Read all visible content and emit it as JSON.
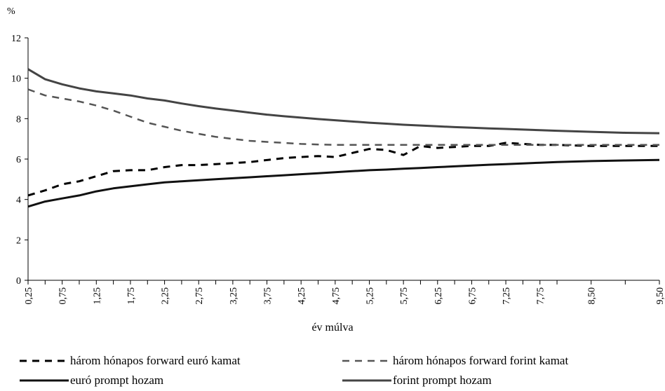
{
  "chart_data": {
    "type": "line",
    "ylabel": "%",
    "xlabel": "év múlva",
    "ylim": [
      0,
      12
    ],
    "yticks": [
      0,
      2,
      4,
      6,
      8,
      10,
      12
    ],
    "xlim": [
      0.25,
      9.5
    ],
    "xtick_labels": [
      "0,25",
      "0,75",
      "1,25",
      "1,75",
      "2,25",
      "2,75",
      "3,25",
      "3,75",
      "4,25",
      "4,75",
      "5,25",
      "5,75",
      "6,25",
      "6,75",
      "7,25",
      "7,75",
      "8,50",
      "9,50"
    ],
    "x": [
      0.25,
      0.5,
      0.75,
      1,
      1.25,
      1.5,
      1.75,
      2,
      2.25,
      2.5,
      2.75,
      3,
      3.25,
      3.5,
      3.75,
      4,
      4.25,
      4.5,
      4.75,
      5,
      5.25,
      5.5,
      5.75,
      6,
      6.25,
      6.5,
      6.75,
      7,
      7.25,
      7.5,
      7.75,
      8,
      8.5,
      9,
      9.5
    ],
    "grid": false,
    "legend_position": "bottom",
    "series": [
      {
        "name": "három hónapos forward euró kamat",
        "style": "dashed-dark",
        "color": "#000000",
        "values": [
          4.2,
          4.45,
          4.75,
          4.9,
          5.15,
          5.4,
          5.45,
          5.45,
          5.6,
          5.7,
          5.7,
          5.75,
          5.8,
          5.85,
          5.95,
          6.05,
          6.1,
          6.15,
          6.1,
          6.3,
          6.5,
          6.45,
          6.2,
          6.65,
          6.55,
          6.6,
          6.65,
          6.65,
          6.8,
          6.75,
          6.7,
          6.7,
          6.65,
          6.65,
          6.65
        ]
      },
      {
        "name": "három hónapos forward forint kamat",
        "style": "dashed-gray",
        "color": "#555555",
        "values": [
          9.45,
          9.15,
          9.0,
          8.85,
          8.65,
          8.4,
          8.1,
          7.8,
          7.6,
          7.4,
          7.25,
          7.1,
          7.0,
          6.9,
          6.85,
          6.8,
          6.75,
          6.72,
          6.7,
          6.7,
          6.7,
          6.7,
          6.7,
          6.7,
          6.7,
          6.7,
          6.7,
          6.7,
          6.7,
          6.7,
          6.7,
          6.7,
          6.7,
          6.7,
          6.7
        ]
      },
      {
        "name": "euró prompt hozam",
        "style": "solid-dark",
        "color": "#000000",
        "values": [
          3.65,
          3.9,
          4.05,
          4.2,
          4.4,
          4.55,
          4.65,
          4.75,
          4.85,
          4.9,
          4.95,
          5.0,
          5.05,
          5.1,
          5.15,
          5.2,
          5.25,
          5.3,
          5.35,
          5.4,
          5.45,
          5.48,
          5.52,
          5.56,
          5.6,
          5.64,
          5.68,
          5.72,
          5.75,
          5.78,
          5.82,
          5.85,
          5.9,
          5.93,
          5.96
        ]
      },
      {
        "name": "forint prompt hozam",
        "style": "solid-gray",
        "color": "#444444",
        "values": [
          10.45,
          9.95,
          9.7,
          9.5,
          9.35,
          9.25,
          9.15,
          9.0,
          8.9,
          8.75,
          8.62,
          8.5,
          8.4,
          8.3,
          8.2,
          8.12,
          8.05,
          7.98,
          7.92,
          7.86,
          7.8,
          7.75,
          7.7,
          7.66,
          7.62,
          7.58,
          7.55,
          7.52,
          7.49,
          7.46,
          7.43,
          7.4,
          7.35,
          7.3,
          7.28
        ]
      }
    ]
  }
}
